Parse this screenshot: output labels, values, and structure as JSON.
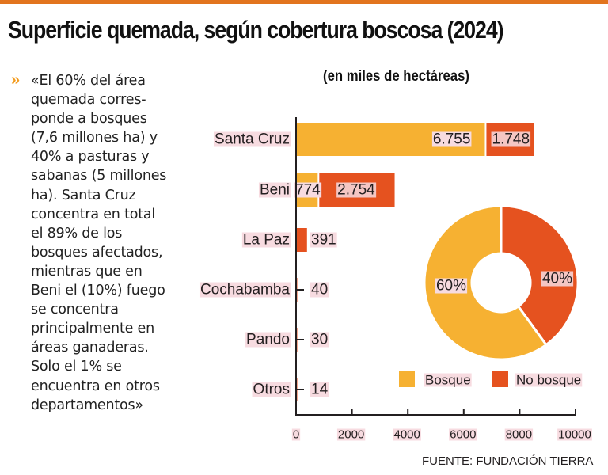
{
  "title": "Superficie quemada, según cobertura boscosa (2024)",
  "quote": {
    "icon": "double-chevron-right-icon",
    "text": "«El 60% del área quemada corres-ponde a bosques (7,6 millones ha) y 40% a pasturas y sabanas (5 millones ha). Santa Cruz concentra en total el 89% de los bosques afectados, mientras que en Beni el (10%) fuego se concentra principalmente en áreas ganaderas. Solo el 1% se encuentra en otros departamentos»",
    "lines": [
      "«El 60% del área",
      "quemada corres-",
      "ponde a bosques",
      "(7,6 millones ha) y",
      "40% a pasturas y",
      "sabanas (5 millones",
      "ha). Santa Cruz",
      "concentra en total",
      "el 89% de los",
      "bosques afectados,",
      "mientras que en",
      "Beni el (10%) fuego",
      "se concentra",
      "principalmente en",
      "áreas ganaderas.",
      "Solo el 1% se",
      "encuentra en otros",
      "departamentos»"
    ]
  },
  "source": "FUENTE:  FUNDACIÓN TIERRA",
  "colors": {
    "bosque": "#f6b132",
    "no_bosque": "#e5521f",
    "accent": "#e2741e",
    "label_bg": "#f7dbe0"
  },
  "chart_data": [
    {
      "type": "bar",
      "orientation": "horizontal",
      "stacked": true,
      "subtitle": "(en miles de hectáreas)",
      "categories": [
        "Santa Cruz",
        "Beni",
        "La Paz",
        "Cochabamba",
        "Pando",
        "Otros"
      ],
      "series": [
        {
          "name": "Bosque",
          "values": [
            6755,
            774,
            null,
            null,
            null,
            null
          ],
          "labels": [
            "6.755",
            "774",
            "",
            "",
            "",
            ""
          ]
        },
        {
          "name": "No bosque",
          "values": [
            1748,
            2754,
            391,
            40,
            30,
            14
          ],
          "labels": [
            "1.748",
            "2.754",
            "391",
            "40",
            "30",
            "14"
          ]
        }
      ],
      "xlim": [
        0,
        10000
      ],
      "xticks": [
        "0",
        "2000",
        "4000",
        "6000",
        "8000",
        "10000"
      ],
      "xtick_values": [
        0,
        2000,
        4000,
        6000,
        8000,
        10000
      ]
    },
    {
      "type": "pie",
      "donut": true,
      "slices": [
        {
          "name": "Bosque",
          "value": 60,
          "label": "60%"
        },
        {
          "name": "No bosque",
          "value": 40,
          "label": "40%"
        }
      ],
      "legend": [
        "Bosque",
        "No bosque"
      ],
      "legend_position": "bottom"
    }
  ]
}
